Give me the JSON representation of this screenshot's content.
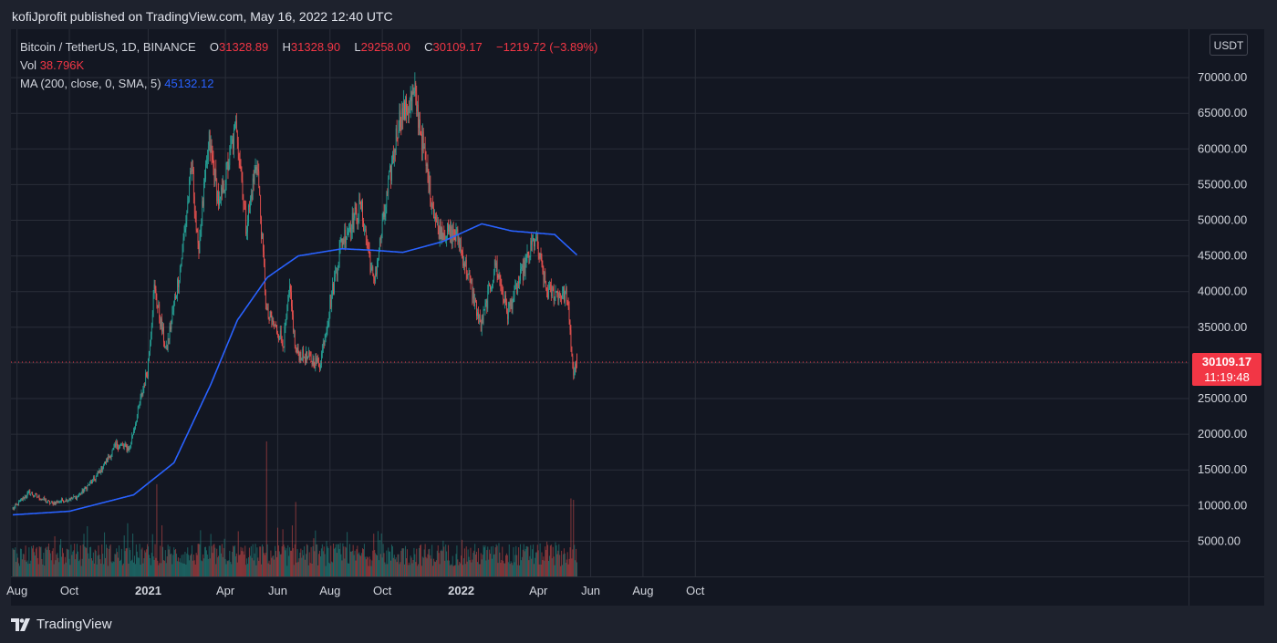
{
  "header": {
    "publisher_text": "kofiJprofit published on TradingView.com, May 16, 2022 12:40 UTC"
  },
  "legend": {
    "symbol": "Bitcoin / TetherUS, 1D, BINANCE",
    "open_label": "O",
    "open": "31328.89",
    "high_label": "H",
    "high": "31328.90",
    "low_label": "L",
    "low": "29258.00",
    "close_label": "C",
    "close": "30109.17",
    "change": "−1219.72 (−3.89%)",
    "vol_label": "Vol",
    "vol_value": "38.796K",
    "ma_label": "MA (200, close, 0, SMA, 5)",
    "ma_value": "45132.12"
  },
  "currency_button": "USDT",
  "price_tag": {
    "price": "30109.17",
    "countdown": "11:19:48"
  },
  "footer": {
    "brand": "TradingView"
  },
  "colors": {
    "up": "#26a69a",
    "down": "#ef5350",
    "ma": "#2962ff",
    "background": "#131722",
    "grid": "#2a2e39"
  },
  "chart_data": {
    "type": "candlestick",
    "symbol": "Bitcoin / TetherUS",
    "interval": "1D",
    "exchange": "BINANCE",
    "y_axis_ticks": [
      "5000.00",
      "10000.00",
      "15000.00",
      "20000.00",
      "25000.00",
      "30000.00",
      "35000.00",
      "40000.00",
      "45000.00",
      "50000.00",
      "55000.00",
      "60000.00",
      "65000.00",
      "70000.00"
    ],
    "ylim": [
      0,
      75000
    ],
    "x_axis_ticks": [
      "Aug",
      "Oct",
      "2021",
      "Apr",
      "Jun",
      "Aug",
      "Oct",
      "2022",
      "Apr",
      "Jun",
      "Aug",
      "Oct"
    ],
    "x_axis_tick_months": [
      "2020-08",
      "2020-10",
      "2021-01",
      "2021-04",
      "2021-06",
      "2021-08",
      "2021-10",
      "2022-01",
      "2022-04",
      "2022-06",
      "2022-08",
      "2022-10"
    ],
    "grid": true,
    "price_keypoints": [
      {
        "date": "2020-07-27",
        "close": 9500
      },
      {
        "date": "2020-08-15",
        "close": 11800
      },
      {
        "date": "2020-09-10",
        "close": 10300
      },
      {
        "date": "2020-10-10",
        "close": 11200
      },
      {
        "date": "2020-10-31",
        "close": 13800
      },
      {
        "date": "2020-11-25",
        "close": 18500
      },
      {
        "date": "2020-12-10",
        "close": 18000
      },
      {
        "date": "2020-12-31",
        "close": 29000
      },
      {
        "date": "2021-01-08",
        "close": 40500
      },
      {
        "date": "2021-01-22",
        "close": 31500
      },
      {
        "date": "2021-02-08",
        "close": 44000
      },
      {
        "date": "2021-02-21",
        "close": 57500
      },
      {
        "date": "2021-02-28",
        "close": 45500
      },
      {
        "date": "2021-03-13",
        "close": 61000
      },
      {
        "date": "2021-03-25",
        "close": 52000
      },
      {
        "date": "2021-04-14",
        "close": 63500
      },
      {
        "date": "2021-04-25",
        "close": 49000
      },
      {
        "date": "2021-05-08",
        "close": 58500
      },
      {
        "date": "2021-05-19",
        "close": 37000
      },
      {
        "date": "2021-06-08",
        "close": 33000
      },
      {
        "date": "2021-06-15",
        "close": 40000
      },
      {
        "date": "2021-06-22",
        "close": 31500
      },
      {
        "date": "2021-07-20",
        "close": 29800
      },
      {
        "date": "2021-08-14",
        "close": 47000
      },
      {
        "date": "2021-09-06",
        "close": 52000
      },
      {
        "date": "2021-09-21",
        "close": 41000
      },
      {
        "date": "2021-10-20",
        "close": 64000
      },
      {
        "date": "2021-11-08",
        "close": 67500
      },
      {
        "date": "2021-11-26",
        "close": 54000
      },
      {
        "date": "2021-12-04",
        "close": 49000
      },
      {
        "date": "2021-12-28",
        "close": 47500
      },
      {
        "date": "2022-01-10",
        "close": 41800
      },
      {
        "date": "2022-01-24",
        "close": 35000
      },
      {
        "date": "2022-02-10",
        "close": 44000
      },
      {
        "date": "2022-02-24",
        "close": 37000
      },
      {
        "date": "2022-03-28",
        "close": 47500
      },
      {
        "date": "2022-04-11",
        "close": 40000
      },
      {
        "date": "2022-05-04",
        "close": 39600
      },
      {
        "date": "2022-05-12",
        "close": 28500
      },
      {
        "date": "2022-05-16",
        "close": 30109.17
      }
    ],
    "ma_keypoints": [
      {
        "date": "2020-07-27",
        "value": 8700
      },
      {
        "date": "2020-10-01",
        "value": 9200
      },
      {
        "date": "2020-12-15",
        "value": 11500
      },
      {
        "date": "2021-01-31",
        "value": 16000
      },
      {
        "date": "2021-03-15",
        "value": 27000
      },
      {
        "date": "2021-04-15",
        "value": 36000
      },
      {
        "date": "2021-05-20",
        "value": 42000
      },
      {
        "date": "2021-06-25",
        "value": 45000
      },
      {
        "date": "2021-08-15",
        "value": 46000
      },
      {
        "date": "2021-09-20",
        "value": 45800
      },
      {
        "date": "2021-10-25",
        "value": 45500
      },
      {
        "date": "2021-12-10",
        "value": 47000
      },
      {
        "date": "2022-01-25",
        "value": 49500
      },
      {
        "date": "2022-03-01",
        "value": 48500
      },
      {
        "date": "2022-04-20",
        "value": 48000
      },
      {
        "date": "2022-05-16",
        "value": 45132.12
      }
    ],
    "volume_peaks": [
      {
        "date": "2021-01-11",
        "value": 13000
      },
      {
        "date": "2021-05-19",
        "value": 19000
      },
      {
        "date": "2021-06-22",
        "value": 10500
      },
      {
        "date": "2022-05-09",
        "value": 11000
      },
      {
        "date": "2022-05-12",
        "value": 10800
      }
    ],
    "last_price": 30109.17,
    "last_open": 31328.89,
    "last_high": 31328.9,
    "last_low": 29258.0,
    "last_change": -1219.72,
    "last_change_pct": -3.89,
    "last_volume": "38.796K",
    "ma_last": 45132.12
  }
}
